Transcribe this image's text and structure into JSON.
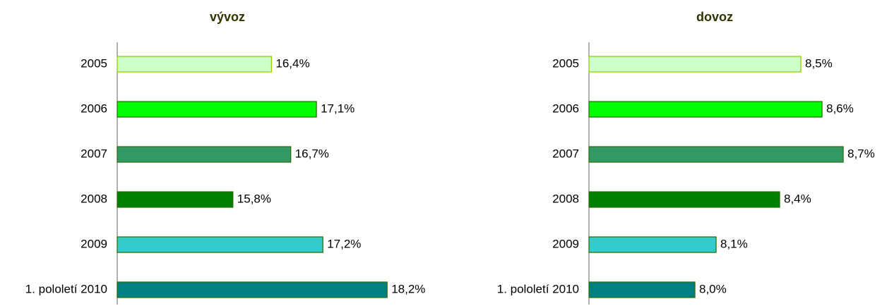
{
  "chart_data": [
    {
      "type": "barh",
      "title": "vývoz",
      "categories": [
        "2005",
        "2006",
        "2007",
        "2008",
        "2009",
        "1. pololetí 2010"
      ],
      "values": [
        16.4,
        17.1,
        16.7,
        15.8,
        17.2,
        18.2
      ],
      "value_labels": [
        "16,4%",
        "17,1%",
        "16,7%",
        "15,8%",
        "17,2%",
        "18,2%"
      ],
      "colors": [
        "#ccffcc",
        "#00ff00",
        "#339966",
        "#008000",
        "#33cccc",
        "#008080"
      ],
      "xlim": [
        14,
        19
      ]
    },
    {
      "type": "barh",
      "title": "dovoz",
      "categories": [
        "2005",
        "2006",
        "2007",
        "2008",
        "2009",
        "1. pololetí 2010"
      ],
      "values": [
        8.5,
        8.6,
        8.7,
        8.4,
        8.1,
        8.0
      ],
      "value_labels": [
        "8,5%",
        "8,6%",
        "8,7%",
        "8,4%",
        "8,1%",
        "8,0%"
      ],
      "colors": [
        "#ccffcc",
        "#00ff00",
        "#339966",
        "#008000",
        "#33cccc",
        "#008080"
      ],
      "xlim": [
        7.5,
        8.9
      ]
    }
  ]
}
